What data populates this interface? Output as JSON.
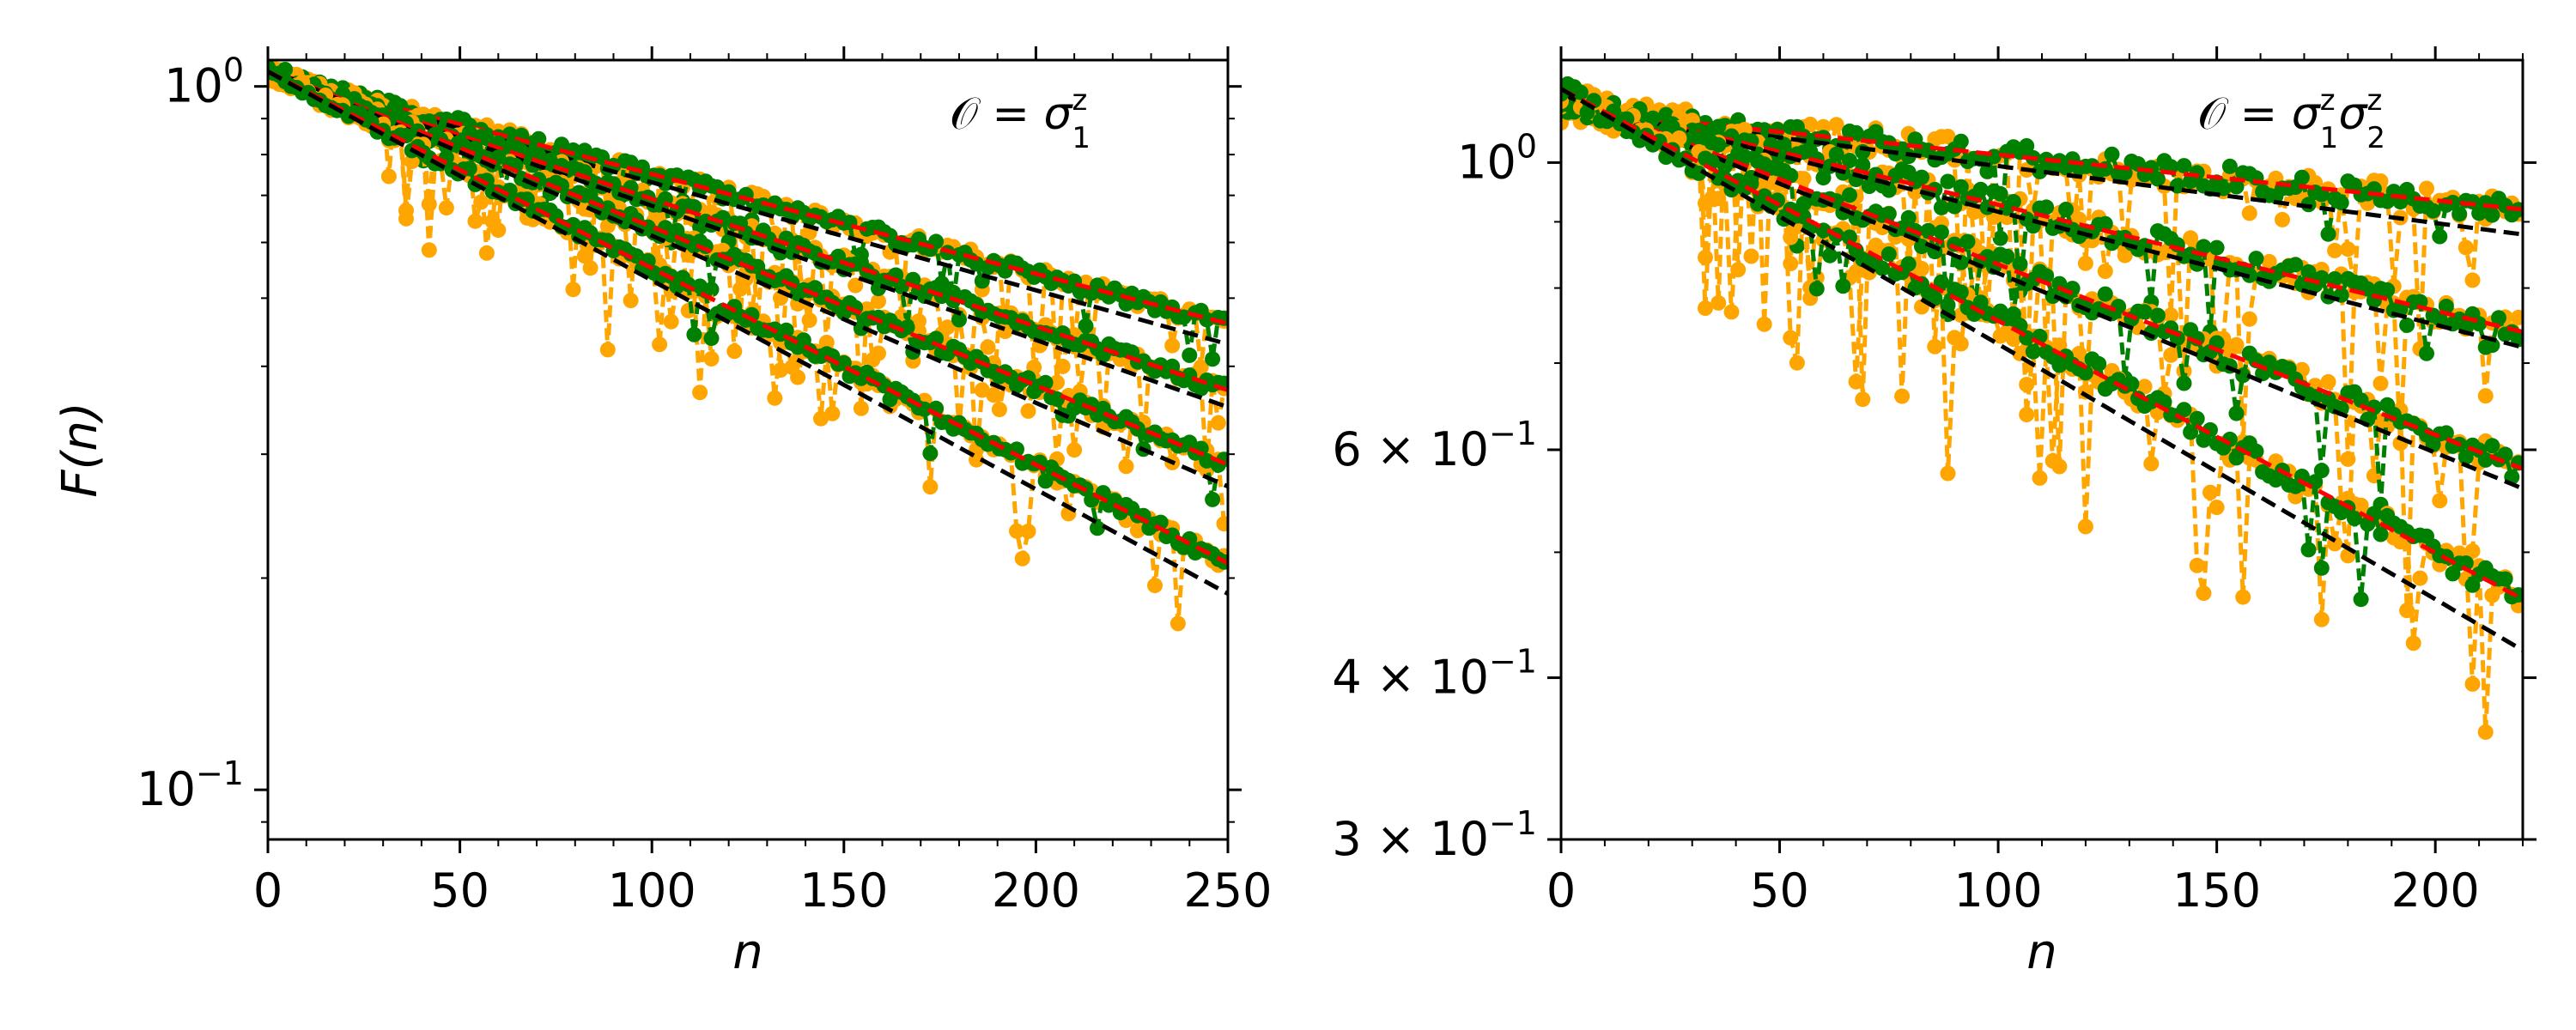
{
  "chart_data": [
    {
      "type": "line",
      "yscale": "log",
      "xlabel": "n",
      "ylabel": "F(n)",
      "xlim": [
        0,
        250
      ],
      "ylim": [
        0.085,
        1.09
      ],
      "xticks": [
        0,
        50,
        100,
        150,
        200,
        250
      ],
      "xtick_labels": [
        "0",
        "50",
        "100",
        "150",
        "200",
        "250"
      ],
      "yticks": [
        {
          "value": 1.0,
          "base": "10",
          "exp": "0"
        },
        {
          "value": 0.1,
          "base": "10",
          "exp": "−1"
        }
      ],
      "annotation": {
        "lhs": "𝒪 = ",
        "terms": [
          {
            "sym": "σ",
            "sup": "z",
            "sub": "1"
          }
        ]
      },
      "series_style": {
        "data_a": "#ffa500",
        "data_b": "#008000",
        "fit_a": "#ff0000",
        "fit_b": "#000000"
      },
      "curves": [
        {
          "decay_rate": 0.0036,
          "start": 1.04,
          "end_data": 0.46,
          "end_fit": 0.43
        },
        {
          "decay_rate": 0.0045,
          "start": 1.05,
          "end_data": 0.37,
          "end_fit": 0.35
        },
        {
          "decay_rate": 0.0054,
          "start": 1.06,
          "end_data": 0.29,
          "end_fit": 0.27
        },
        {
          "decay_rate": 0.0066,
          "start": 1.05,
          "end_data": 0.21,
          "end_fit": 0.19
        }
      ]
    },
    {
      "type": "line",
      "yscale": "log",
      "xlabel": "n",
      "ylabel": "",
      "xlim": [
        0,
        220
      ],
      "ylim": [
        0.3,
        1.2
      ],
      "xticks": [
        0,
        50,
        100,
        150,
        200
      ],
      "xtick_labels": [
        "0",
        "50",
        "100",
        "150",
        "200"
      ],
      "yticks": [
        {
          "value": 1.0,
          "base": "10",
          "exp": "0",
          "prefix": ""
        },
        {
          "value": 0.6,
          "base": "10",
          "exp": "−1",
          "prefix": "6 × "
        },
        {
          "value": 0.4,
          "base": "10",
          "exp": "−1",
          "prefix": "4 × "
        },
        {
          "value": 0.3,
          "base": "10",
          "exp": "−1",
          "prefix": "3 × "
        }
      ],
      "annotation": {
        "lhs": "𝒪 = ",
        "terms": [
          {
            "sym": "σ",
            "sup": "z",
            "sub": "1"
          },
          {
            "sym": "σ",
            "sup": "z",
            "sub": "2"
          }
        ]
      },
      "series_style": {
        "data_a": "#ffa500",
        "data_b": "#008000",
        "fit_a": "#ff0000",
        "fit_b": "#000000"
      },
      "curves": [
        {
          "decay_rate": 0.0012,
          "start": 1.1,
          "end_data": 0.92,
          "end_fit": 0.88
        },
        {
          "decay_rate": 0.0022,
          "start": 1.12,
          "end_data": 0.74,
          "end_fit": 0.72
        },
        {
          "decay_rate": 0.003,
          "start": 1.13,
          "end_data": 0.58,
          "end_fit": 0.56
        },
        {
          "decay_rate": 0.0042,
          "start": 1.14,
          "end_data": 0.46,
          "end_fit": 0.42
        }
      ]
    }
  ]
}
